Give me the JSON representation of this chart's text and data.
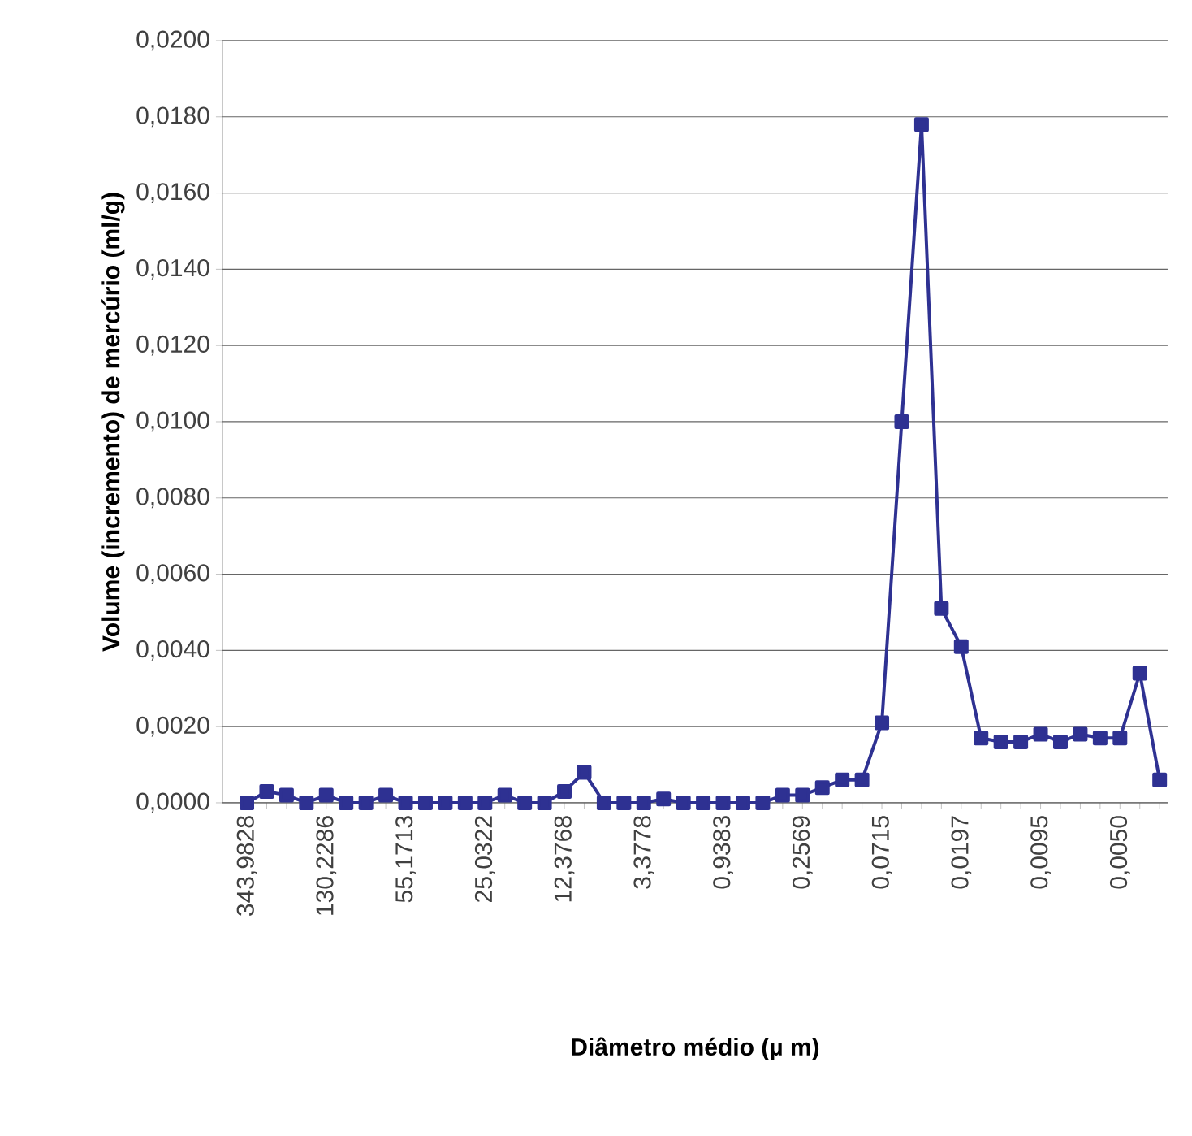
{
  "chart_data": {
    "type": "line",
    "xlabel": "Diâmetro médio (µ m)",
    "ylabel": "Volume (incremento) de mercúrio (ml/g)",
    "categories": [
      "343,9828",
      null,
      null,
      null,
      "130,2286",
      null,
      null,
      null,
      "55,1713",
      null,
      null,
      null,
      "25,0322",
      null,
      null,
      null,
      "12,3768",
      null,
      null,
      null,
      "3,3778",
      null,
      null,
      null,
      "0,9383",
      null,
      null,
      null,
      "0,2569",
      null,
      null,
      null,
      "0,0715",
      null,
      null,
      null,
      "0,0197",
      null,
      null,
      null,
      "0,0095",
      null,
      null,
      null,
      "0,0050",
      null,
      null
    ],
    "series": [
      {
        "color": "#2e3192",
        "values": [
          0,
          0.0003,
          0.0002,
          0,
          0.0002,
          0,
          0,
          0.0002,
          0,
          0,
          0,
          0,
          0,
          0.0002,
          0,
          0,
          0.0003,
          0.0008,
          0,
          0,
          0,
          0.0001,
          0,
          0,
          0,
          0,
          0,
          0.0002,
          0.0002,
          0.0004,
          0.0006,
          0.0006,
          0.0021,
          0.01,
          0.0178,
          0.0051,
          0.0041,
          0.0017,
          0.0016,
          0.0016,
          0.0018,
          0.0016,
          0.0018,
          0.0017,
          0.0017,
          0.0034,
          0.0006
        ]
      }
    ],
    "ylim": [
      0,
      0.02
    ],
    "yticks": [
      {
        "value": 0,
        "label": "0,0000"
      },
      {
        "value": 0.002,
        "label": "0,0020"
      },
      {
        "value": 0.004,
        "label": "0,0040"
      },
      {
        "value": 0.006,
        "label": "0,0060"
      },
      {
        "value": 0.008,
        "label": "0,0080"
      },
      {
        "value": 0.01,
        "label": "0,0100"
      },
      {
        "value": 0.012,
        "label": "0,0120"
      },
      {
        "value": 0.014,
        "label": "0,0140"
      },
      {
        "value": 0.016,
        "label": "0,0160"
      },
      {
        "value": 0.018,
        "label": "0,0180"
      },
      {
        "value": 0.02,
        "label": "0,0200"
      }
    ],
    "grid": "y",
    "marker": "square",
    "line_style": "solid"
  }
}
